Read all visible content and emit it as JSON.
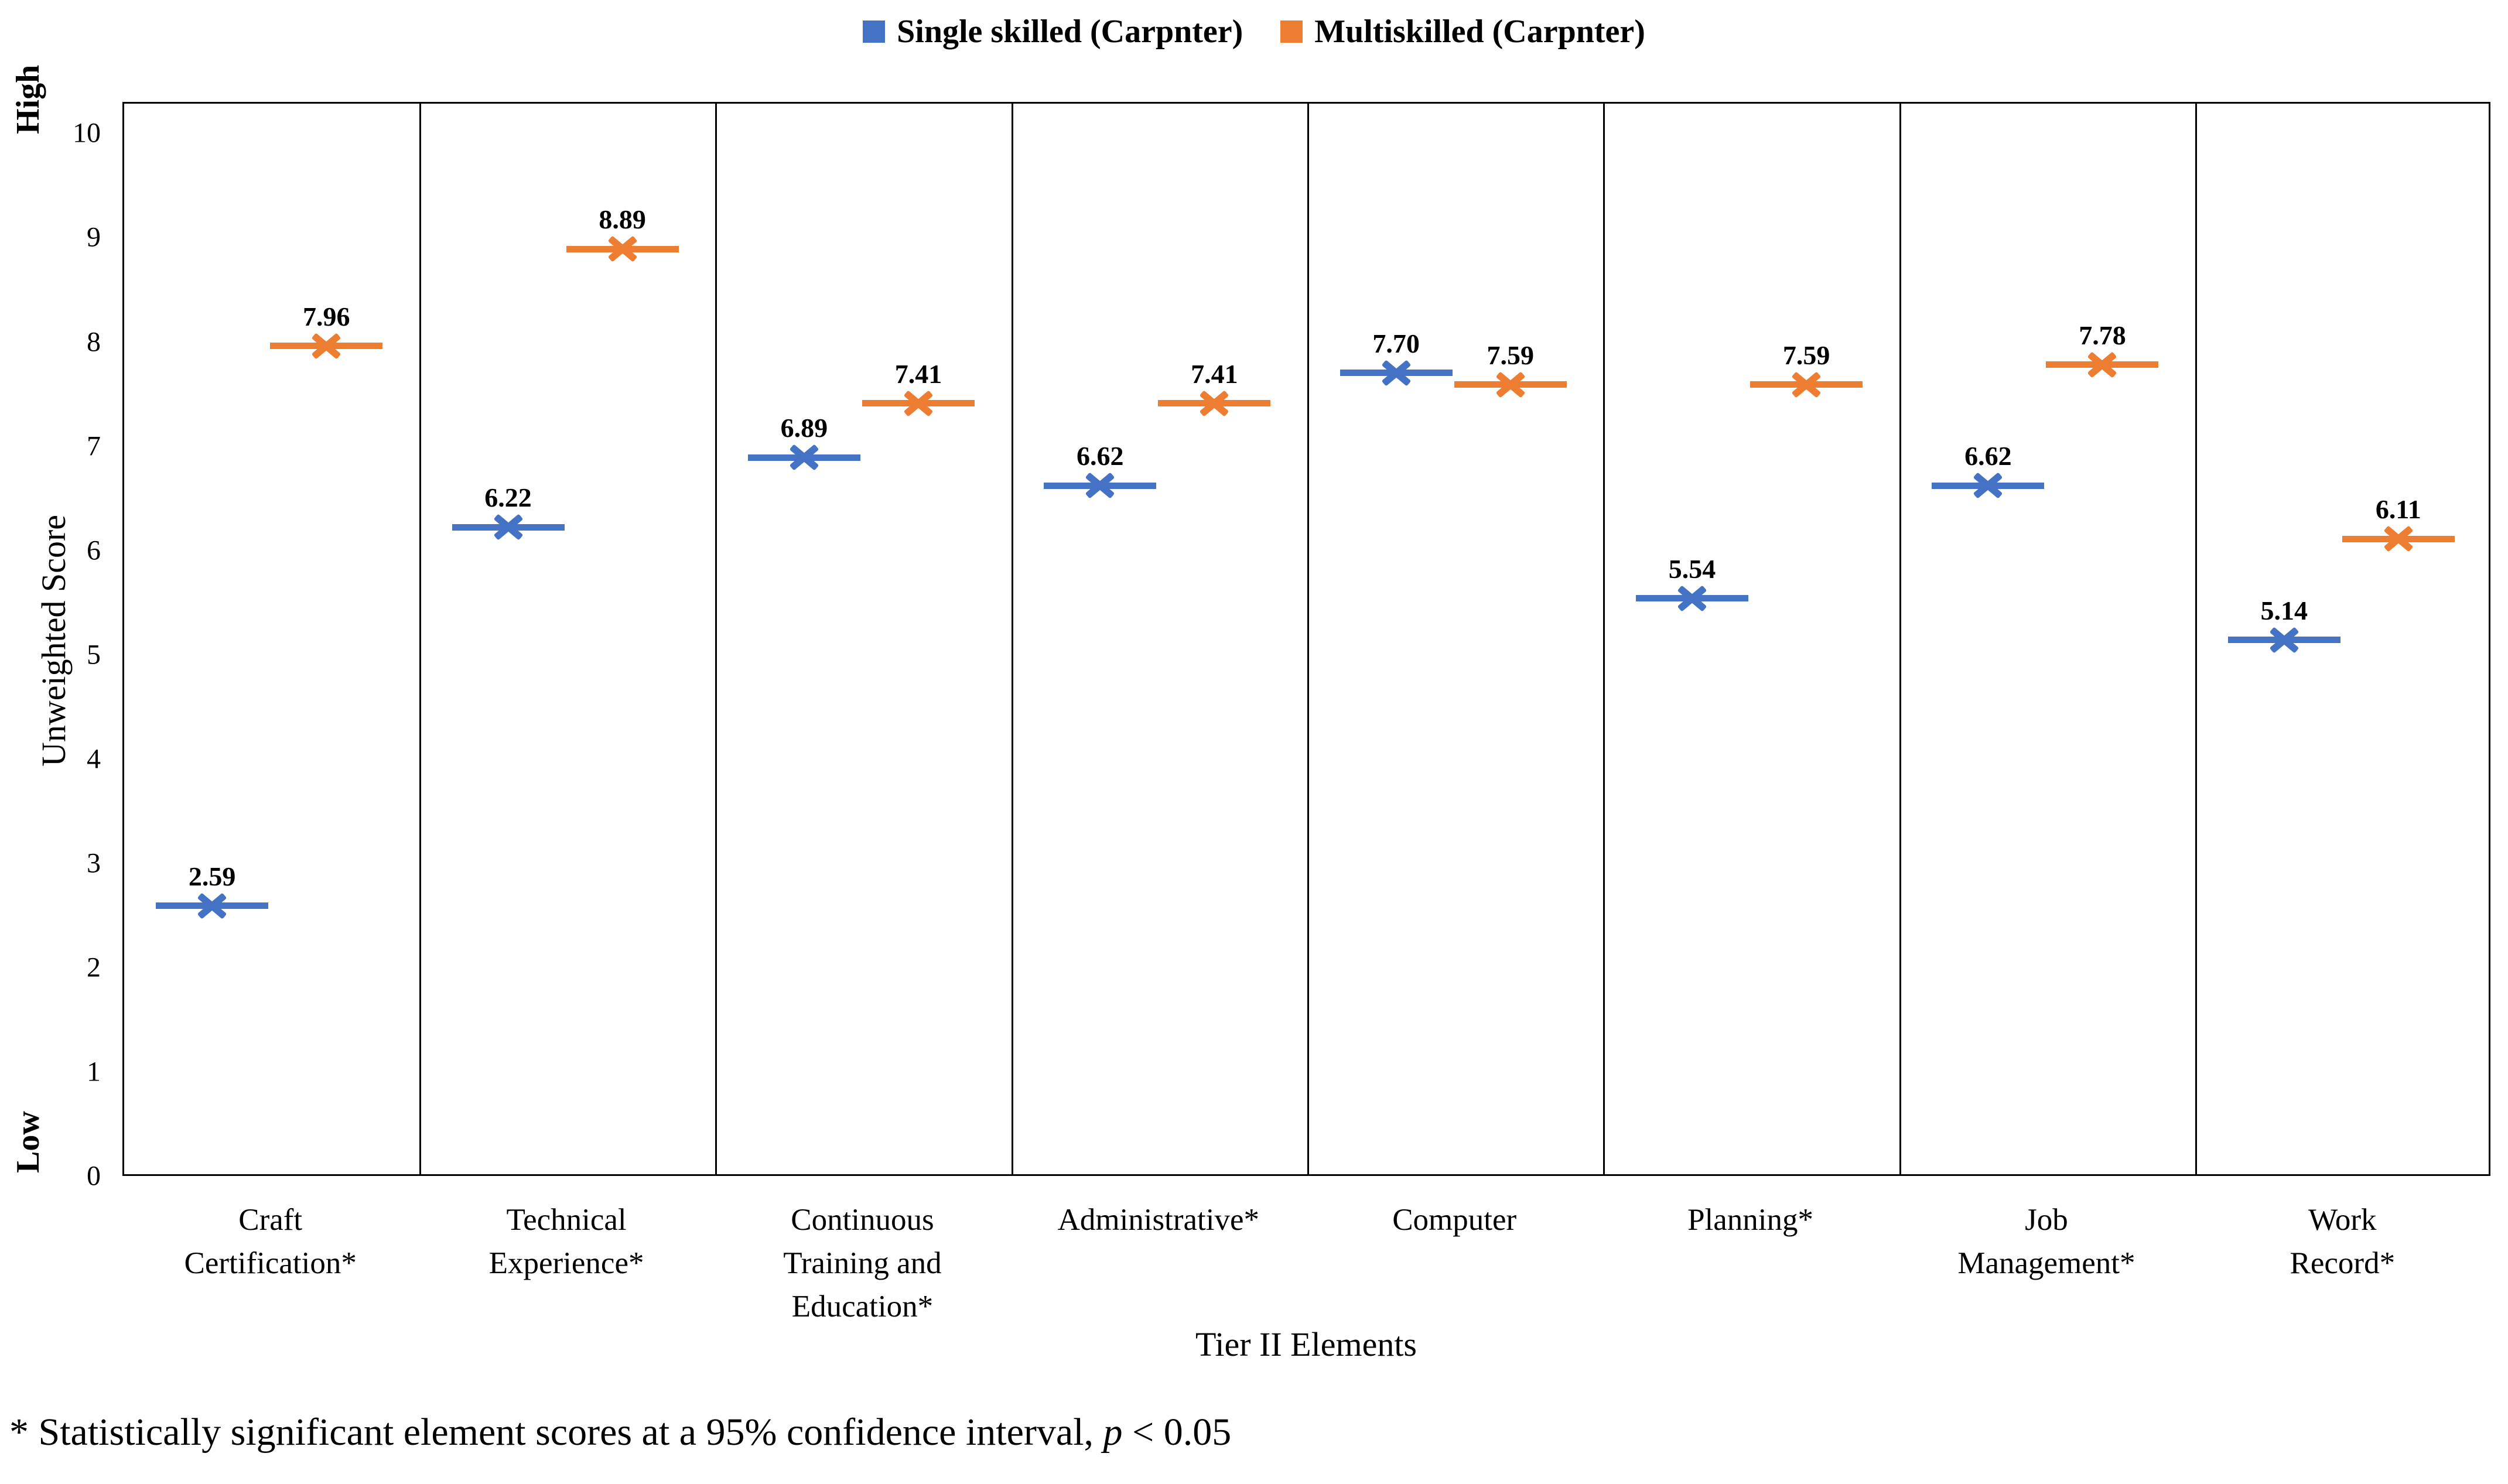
{
  "legend": {
    "items": [
      {
        "label": "Single skilled (Carpnter)",
        "color": "#4472C4"
      },
      {
        "label": "Multiskilled (Carpnter)",
        "color": "#ED7D31"
      }
    ]
  },
  "y_axis": {
    "title": "Unweighted Score",
    "high_label": "High",
    "low_label": "Low",
    "ticks": [
      0,
      1,
      2,
      3,
      4,
      5,
      6,
      7,
      8,
      9,
      10
    ]
  },
  "x_axis": {
    "title": "Tier II Elements",
    "category_lines": [
      [
        "Craft",
        "Certification*"
      ],
      [
        "Technical",
        "Experience*"
      ],
      [
        "Continuous",
        "Training and",
        "Education*"
      ],
      [
        "Administrative*"
      ],
      [
        "Computer"
      ],
      [
        "Planning*"
      ],
      [
        "Job",
        "Management*"
      ],
      [
        "Work",
        "Record*"
      ]
    ]
  },
  "footnote": {
    "before_p": "* Statistically significant element scores at a 95% confidence interval, ",
    "p": "p",
    "after_p": " < 0.05"
  },
  "chart_data": {
    "type": "scatter",
    "title": "",
    "categories": [
      "Craft Certification*",
      "Technical Experience*",
      "Continuous Training and Education*",
      "Administrative*",
      "Computer",
      "Planning*",
      "Job Management*",
      "Work Record*"
    ],
    "series": [
      {
        "name": "Single skilled (Carpnter)",
        "color": "#4472C4",
        "values": [
          2.59,
          6.22,
          6.89,
          6.62,
          7.7,
          5.54,
          6.62,
          5.14
        ]
      },
      {
        "name": "Multiskilled (Carpnter)",
        "color": "#ED7D31",
        "values": [
          7.96,
          8.89,
          7.41,
          7.41,
          7.59,
          7.59,
          7.78,
          6.11
        ]
      }
    ],
    "xlabel": "Tier II Elements",
    "ylabel": "Unweighted Score",
    "ylim": [
      0,
      10.3
    ],
    "yticks": [
      0,
      1,
      2,
      3,
      4,
      5,
      6,
      7,
      8,
      9,
      10
    ],
    "y_end_labels": {
      "top": "High",
      "bottom": "Low"
    },
    "marker": "x",
    "data_labels": true,
    "data_label_format": "0.00",
    "grid": false,
    "panel_dividers": true,
    "legend_position": "top-center"
  }
}
